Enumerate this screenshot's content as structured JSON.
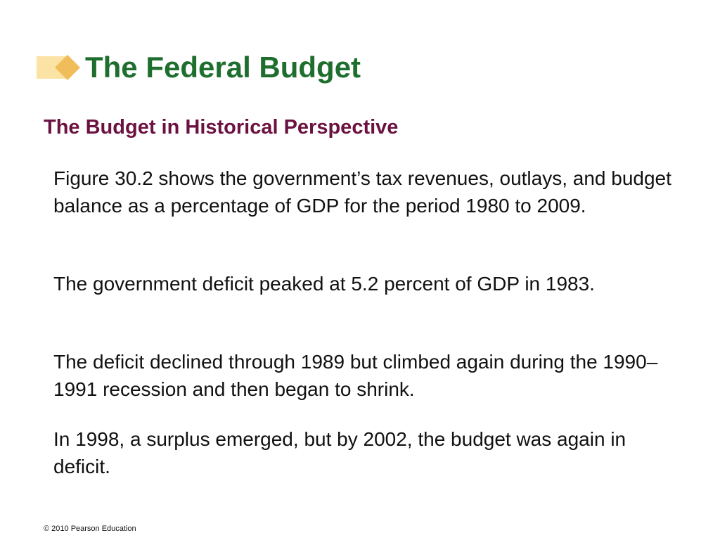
{
  "title": "The Federal Budget",
  "subtitle": "The Budget in Historical Perspective",
  "paragraphs": [
    "Figure 30.2 shows the government’s tax revenues, outlays, and budget balance as a percentage of GDP for the period 1980 to 2009.",
    "The government deficit peaked at 5.2 percent of GDP in 1983.",
    "The deficit declined through 1989 but climbed again during the 1990–1991 recession and then began to shrink.",
    "In 1998, a surplus emerged, but by 2002, the budget was again in deficit."
  ],
  "footer": "© 2010 Pearson Education",
  "colors": {
    "title": "#1e6e2e",
    "subtitle": "#6b1240",
    "mark_light": "#fbe2a5",
    "mark_dark": "#f0bd5a"
  },
  "icons": {
    "title_mark": "diamond-bullet-icon"
  }
}
